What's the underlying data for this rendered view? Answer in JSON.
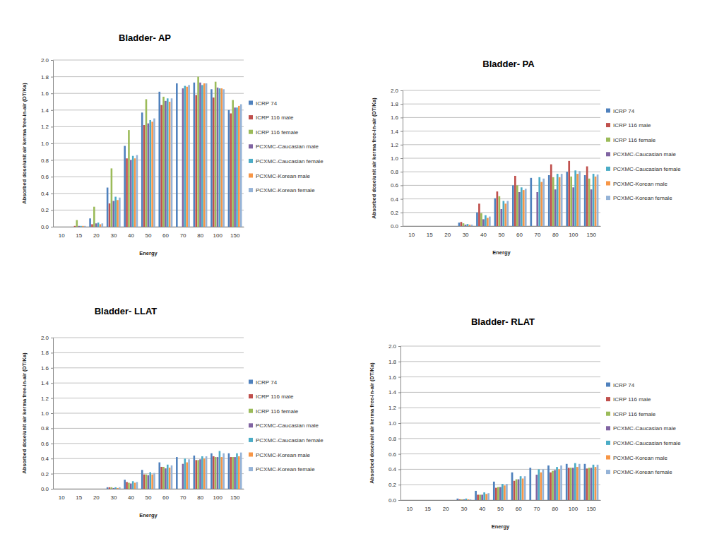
{
  "chart_data": [
    {
      "type": "bar",
      "title": "Bladder- AP",
      "x_label": "Energy",
      "y_label": "Absorbed dose/unit air kerma free-in-air (DT/Ka)",
      "categories": [
        "10",
        "15",
        "20",
        "30",
        "40",
        "50",
        "60",
        "70",
        "80",
        "100",
        "150"
      ],
      "ylim": [
        0,
        2
      ],
      "yticks": [
        {
          "value": 0,
          "label": "0.0"
        },
        {
          "value": 0.2,
          "label": "0.2"
        },
        {
          "value": 0.4,
          "label": "0.4"
        },
        {
          "value": 0.6,
          "label": "0.6"
        },
        {
          "value": 0.8,
          "label": "0.8"
        },
        {
          "value": 1,
          "label": "1.0"
        },
        {
          "value": 1.2,
          "label": "1.2"
        },
        {
          "value": 1.4,
          "label": "1.4"
        },
        {
          "value": 1.6,
          "label": "1.6"
        },
        {
          "value": 1.8,
          "label": "1.8"
        },
        {
          "value": 2,
          "label": "2.0"
        }
      ],
      "grid": true,
      "legend": "right",
      "series": [
        {
          "name": "ICRP 74",
          "color": "#4f81bd",
          "values": [
            0,
            0,
            0.1,
            0.47,
            0.97,
            1.37,
            1.62,
            1.72,
            1.73,
            1.65,
            1.4
          ]
        },
        {
          "name": "ICRP 116 male",
          "color": "#c0504d",
          "values": [
            0,
            0.01,
            0.03,
            0.28,
            0.82,
            1.22,
            1.46,
            null,
            1.58,
            1.55,
            1.36
          ]
        },
        {
          "name": "ICRP 116 female",
          "color": "#9bbb59",
          "values": [
            0,
            0.08,
            0.24,
            0.7,
            1.16,
            1.53,
            1.56,
            null,
            1.8,
            1.74,
            1.52
          ]
        },
        {
          "name": "PCXMC-Caucasian male",
          "color": "#8064a2",
          "values": [
            0,
            0.01,
            0.04,
            0.31,
            0.8,
            1.24,
            1.51,
            1.66,
            1.73,
            1.67,
            1.43
          ]
        },
        {
          "name": "PCXMC-Caucasian female",
          "color": "#4bacc6",
          "values": [
            0,
            0.01,
            0.05,
            0.36,
            0.85,
            1.28,
            1.54,
            1.69,
            1.7,
            1.66,
            1.43
          ]
        },
        {
          "name": "PCXMC-Korean male",
          "color": "#f79646",
          "values": [
            0,
            0.01,
            0.03,
            0.32,
            0.82,
            1.26,
            1.5,
            1.68,
            1.72,
            1.66,
            1.45
          ]
        },
        {
          "name": "PCXMC-Korean female",
          "color": "#95b3d7",
          "values": [
            0,
            0.01,
            0.04,
            0.35,
            0.86,
            1.3,
            1.54,
            1.7,
            1.72,
            1.65,
            1.47
          ]
        }
      ]
    },
    {
      "type": "bar",
      "title": "Bladder- PA",
      "x_label": "Energy",
      "y_label": "Absorbed dose/unit air kerma free-in-air (DT/Ka)",
      "categories": [
        "10",
        "15",
        "20",
        "30",
        "40",
        "50",
        "60",
        "70",
        "80",
        "100",
        "150"
      ],
      "ylim": [
        0,
        2
      ],
      "yticks": [
        {
          "value": 0,
          "label": "0.0"
        },
        {
          "value": 0.2,
          "label": "0.2"
        },
        {
          "value": 0.4,
          "label": "0.4"
        },
        {
          "value": 0.6,
          "label": "0.6"
        },
        {
          "value": 0.8,
          "label": "0.8"
        },
        {
          "value": 1,
          "label": "1.0"
        },
        {
          "value": 1.2,
          "label": "1.2"
        },
        {
          "value": 1.4,
          "label": "1.4"
        },
        {
          "value": 1.6,
          "label": "1.6"
        },
        {
          "value": 1.8,
          "label": "1.8"
        },
        {
          "value": 2,
          "label": "2.0"
        }
      ],
      "grid": true,
      "legend": "right",
      "series": [
        {
          "name": "ICRP 74",
          "color": "#4f81bd",
          "values": [
            0,
            0,
            0,
            0.05,
            0.2,
            0.41,
            0.6,
            0.71,
            0.75,
            0.8,
            0.75
          ]
        },
        {
          "name": "ICRP 116 male",
          "color": "#c0504d",
          "values": [
            0,
            0,
            0,
            0.06,
            0.33,
            0.51,
            0.74,
            null,
            0.91,
            0.96,
            0.88
          ]
        },
        {
          "name": "ICRP 116 female",
          "color": "#9bbb59",
          "values": [
            0,
            0,
            0,
            0.04,
            0.19,
            0.44,
            0.6,
            null,
            0.72,
            0.73,
            0.7
          ]
        },
        {
          "name": "PCXMC-Caucasian male",
          "color": "#8064a2",
          "values": [
            0,
            0,
            0,
            0.02,
            0.1,
            0.25,
            0.5,
            0.5,
            0.54,
            0.57,
            0.54
          ]
        },
        {
          "name": "PCXMC-Caucasian female",
          "color": "#4bacc6",
          "values": [
            0,
            0,
            0,
            0.03,
            0.16,
            0.37,
            0.57,
            0.72,
            0.77,
            0.82,
            0.77
          ]
        },
        {
          "name": "PCXMC-Korean male",
          "color": "#f79646",
          "values": [
            0,
            0,
            0,
            0.02,
            0.12,
            0.33,
            0.53,
            0.65,
            0.72,
            0.77,
            0.73
          ]
        },
        {
          "name": "PCXMC-Korean female",
          "color": "#95b3d7",
          "values": [
            0,
            0,
            0,
            0.02,
            0.14,
            0.37,
            0.55,
            0.7,
            0.77,
            0.81,
            0.76
          ]
        }
      ]
    },
    {
      "type": "bar",
      "title": "Bladder- LLAT",
      "x_label": "Energy",
      "y_label": "Absorbed dose/unit air kerma free-in-air (DT/Ka)",
      "categories": [
        "10",
        "15",
        "20",
        "30",
        "40",
        "50",
        "60",
        "70",
        "80",
        "100",
        "150"
      ],
      "ylim": [
        0,
        2
      ],
      "yticks": [
        {
          "value": 0,
          "label": "0.0"
        },
        {
          "value": 0.2,
          "label": "0.2"
        },
        {
          "value": 0.4,
          "label": "0.4"
        },
        {
          "value": 0.6,
          "label": "0.6"
        },
        {
          "value": 0.8,
          "label": "0.8"
        },
        {
          "value": 1,
          "label": "1.0"
        },
        {
          "value": 1.2,
          "label": "1.2"
        },
        {
          "value": 1.4,
          "label": "1.4"
        },
        {
          "value": 1.6,
          "label": "1.6"
        },
        {
          "value": 1.8,
          "label": "1.8"
        },
        {
          "value": 2,
          "label": "2.0"
        }
      ],
      "grid": true,
      "legend": "right",
      "series": [
        {
          "name": "ICRP 74",
          "color": "#4f81bd",
          "values": [
            0,
            0,
            0,
            0.02,
            0.12,
            0.25,
            0.35,
            0.42,
            0.44,
            0.47,
            0.47
          ]
        },
        {
          "name": "ICRP 116 male",
          "color": "#c0504d",
          "values": [
            0,
            0,
            0,
            0.02,
            0.09,
            0.19,
            0.29,
            null,
            0.38,
            0.43,
            0.42
          ]
        },
        {
          "name": "ICRP 116 female",
          "color": "#9bbb59",
          "values": [
            0,
            0,
            0,
            0.02,
            0.08,
            0.19,
            0.29,
            null,
            0.38,
            0.42,
            0.42
          ]
        },
        {
          "name": "PCXMC-Caucasian male",
          "color": "#8064a2",
          "values": [
            0,
            0,
            0,
            0.01,
            0.07,
            0.18,
            0.27,
            0.33,
            0.39,
            0.42,
            0.42
          ]
        },
        {
          "name": "PCXMC-Caucasian female",
          "color": "#4bacc6",
          "values": [
            0,
            0,
            0,
            0.02,
            0.1,
            0.22,
            0.32,
            0.4,
            0.43,
            0.5,
            0.47
          ]
        },
        {
          "name": "PCXMC-Korean male",
          "color": "#f79646",
          "values": [
            0,
            0,
            0,
            0.01,
            0.08,
            0.19,
            0.28,
            0.35,
            0.4,
            0.42,
            0.43
          ]
        },
        {
          "name": "PCXMC-Korean female",
          "color": "#95b3d7",
          "values": [
            0,
            0,
            0,
            0.02,
            0.09,
            0.21,
            0.31,
            0.39,
            0.43,
            0.47,
            0.48
          ]
        }
      ]
    },
    {
      "type": "bar",
      "title": "Bladder- RLAT",
      "x_label": "Energy",
      "y_label": "Absorbed dose/unit air kerma free-in-air (DT/Ka)",
      "categories": [
        "10",
        "15",
        "20",
        "30",
        "40",
        "50",
        "60",
        "70",
        "80",
        "100",
        "150"
      ],
      "ylim": [
        0,
        2
      ],
      "yticks": [
        {
          "value": 0,
          "label": "0.0"
        },
        {
          "value": 0.2,
          "label": "0.2"
        },
        {
          "value": 0.4,
          "label": "0.4"
        },
        {
          "value": 0.6,
          "label": "0.6"
        },
        {
          "value": 0.8,
          "label": "0.8"
        },
        {
          "value": 1,
          "label": "1.0"
        },
        {
          "value": 1.2,
          "label": "1.2"
        },
        {
          "value": 1.4,
          "label": "1.4"
        },
        {
          "value": 1.6,
          "label": "1.6"
        },
        {
          "value": 1.8,
          "label": "1.8"
        },
        {
          "value": 2,
          "label": "2.0"
        }
      ],
      "grid": true,
      "legend": "right",
      "series": [
        {
          "name": "ICRP 74",
          "color": "#4f81bd",
          "values": [
            0,
            0,
            0,
            0.02,
            0.12,
            0.24,
            0.36,
            0.42,
            0.45,
            0.47,
            0.47
          ]
        },
        {
          "name": "ICRP 116 male",
          "color": "#c0504d",
          "values": [
            0,
            0,
            0,
            0.01,
            0.07,
            0.16,
            0.25,
            null,
            0.36,
            0.42,
            0.41
          ]
        },
        {
          "name": "ICRP 116 female",
          "color": "#9bbb59",
          "values": [
            0,
            0,
            0,
            0.01,
            0.07,
            0.17,
            0.27,
            null,
            0.38,
            0.42,
            0.42
          ]
        },
        {
          "name": "PCXMC-Caucasian male",
          "color": "#8064a2",
          "values": [
            0,
            0,
            0,
            0.01,
            0.07,
            0.17,
            0.27,
            0.33,
            0.39,
            0.42,
            0.42
          ]
        },
        {
          "name": "PCXMC-Caucasian female",
          "color": "#4bacc6",
          "values": [
            0,
            0,
            0,
            0.02,
            0.1,
            0.21,
            0.31,
            0.4,
            0.43,
            0.48,
            0.46
          ]
        },
        {
          "name": "PCXMC-Korean male",
          "color": "#f79646",
          "values": [
            0,
            0,
            0,
            0.01,
            0.08,
            0.19,
            0.28,
            0.36,
            0.4,
            0.43,
            0.43
          ]
        },
        {
          "name": "PCXMC-Korean female",
          "color": "#95b3d7",
          "values": [
            0,
            0,
            0,
            0.01,
            0.09,
            0.21,
            0.31,
            0.4,
            0.45,
            0.47,
            0.46
          ]
        }
      ]
    }
  ]
}
